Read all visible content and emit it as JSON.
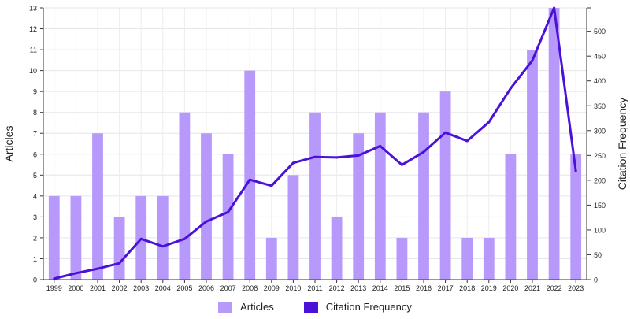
{
  "chart_data": {
    "type": "bar+line",
    "categories": [
      "1999",
      "2000",
      "2001",
      "2002",
      "2003",
      "2004",
      "2005",
      "2006",
      "2007",
      "2008",
      "2009",
      "2010",
      "2011",
      "2012",
      "2013",
      "2014",
      "2015",
      "2016",
      "2017",
      "2018",
      "2019",
      "2020",
      "2021",
      "2022",
      "2023"
    ],
    "series": [
      {
        "name": "Articles",
        "type": "bar",
        "axis": "left",
        "color": "#b799fb",
        "values": [
          4,
          4,
          7,
          3,
          4,
          4,
          8,
          7,
          6,
          10,
          2,
          5,
          8,
          3,
          7,
          8,
          2,
          8,
          9,
          2,
          2,
          6,
          11,
          13,
          6
        ]
      },
      {
        "name": "Citation Frequency",
        "type": "line",
        "axis": "right",
        "color": "#4a12d9",
        "values": [
          2,
          13,
          22,
          33,
          82,
          67,
          82,
          117,
          136,
          201,
          189,
          235,
          247,
          246,
          250,
          269,
          231,
          257,
          296,
          279,
          317,
          385,
          441,
          547,
          218
        ]
      }
    ],
    "ylabel": "Articles",
    "y2label": "Citation Frequency",
    "ylim": [
      0,
      13
    ],
    "y2lim": [
      0,
      547
    ],
    "yticks": [
      0,
      1,
      2,
      3,
      4,
      5,
      6,
      7,
      8,
      9,
      10,
      11,
      12,
      13
    ],
    "y2ticks": [
      0,
      50,
      100,
      150,
      200,
      250,
      300,
      350,
      400,
      450,
      500
    ],
    "grid": true,
    "legend": "bottom"
  }
}
